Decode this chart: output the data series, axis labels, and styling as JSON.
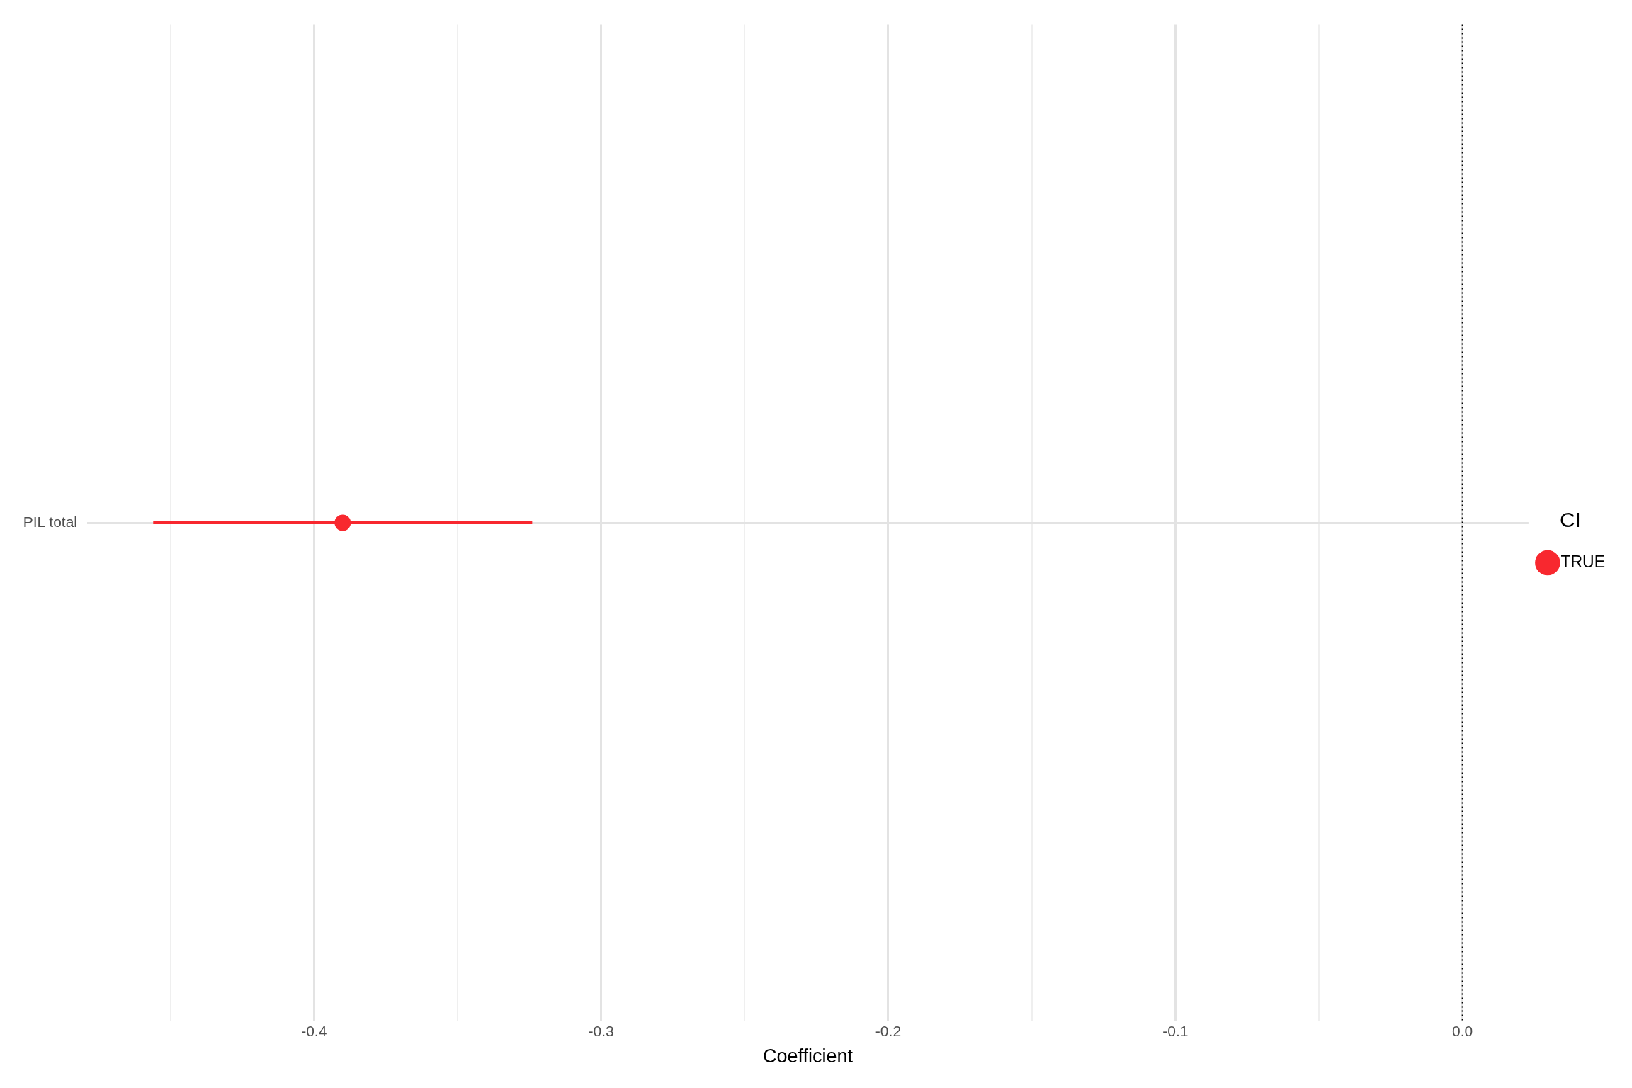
{
  "chart_data": {
    "type": "scatter",
    "orientation": "horizontal",
    "xlabel": "Coefficient",
    "legend_title": "CI",
    "legend": "right",
    "grid": true,
    "marker": "circle",
    "categories": [
      "PIL total"
    ],
    "series": [
      {
        "name": "TRUE",
        "color": "#f8282f",
        "values": [
          -0.39
        ],
        "errors": [
          [
            -0.456,
            -0.324
          ]
        ]
      }
    ],
    "xlim": [
      -0.479,
      0.023
    ],
    "xticks": [
      {
        "value": -0.45,
        "label": null
      },
      {
        "value": -0.4,
        "label": "-0.4"
      },
      {
        "value": -0.35,
        "label": null
      },
      {
        "value": -0.3,
        "label": "-0.3"
      },
      {
        "value": -0.25,
        "label": null
      },
      {
        "value": -0.2,
        "label": "-0.2"
      },
      {
        "value": -0.15,
        "label": null
      },
      {
        "value": -0.1,
        "label": "-0.1"
      },
      {
        "value": -0.05,
        "label": null
      },
      {
        "value": 0,
        "label": "0.0"
      }
    ],
    "ref_lines": [
      {
        "axis": "x",
        "value": 0,
        "color": "#000000",
        "line_style": "dotted"
      }
    ]
  }
}
